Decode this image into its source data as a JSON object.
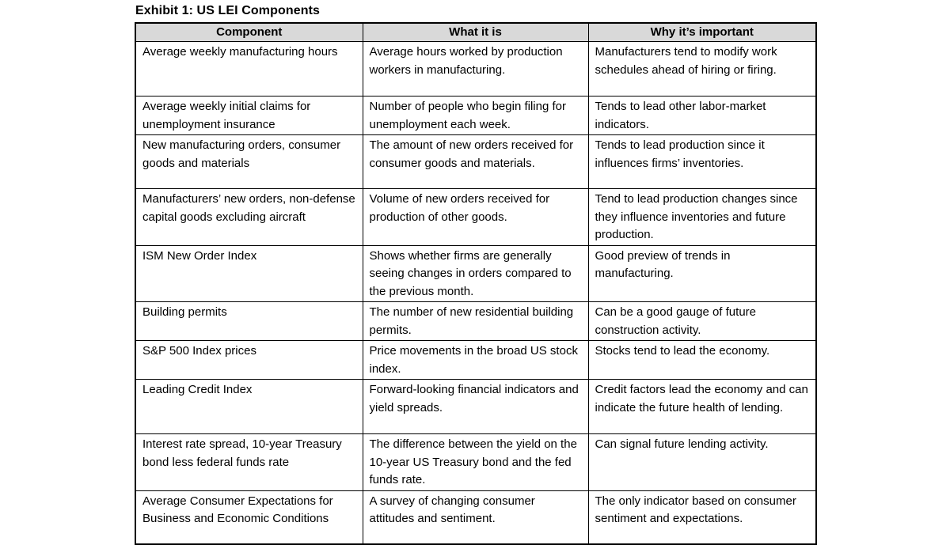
{
  "title": "Exhibit 1: US LEI Components",
  "table": {
    "headers": [
      "Component",
      "What it is",
      "Why it’s important"
    ],
    "rows": [
      {
        "component": "Average weekly manufacturing hours",
        "what": "Average hours worked by production workers in manufacturing.",
        "why": "Manufacturers tend to modify work schedules ahead of hiring or firing."
      },
      {
        "component": "Average weekly initial claims for unemployment insurance",
        "what": "Number of people who begin filing for unemployment each week.",
        "why": "Tends to lead other labor-market indicators."
      },
      {
        "component": "New manufacturing orders, consumer goods and materials",
        "what": "The amount of new orders received for consumer goods and materials.",
        "why": "Tends to lead production since it influences firms’ inventories."
      },
      {
        "component": "Manufacturers’ new orders, non-defense capital goods excluding aircraft",
        "what": "Volume of new orders received for production of other goods.",
        "why": "Tend to lead production changes since they influence inventories and future production."
      },
      {
        "component": "ISM New Order Index",
        "what": "Shows whether firms are generally seeing changes in orders compared to the previous month.",
        "why": "Good preview of trends in manufacturing."
      },
      {
        "component": "Building permits",
        "what": "The number of new residential building permits.",
        "why": "Can be a good gauge of future construction activity."
      },
      {
        "component": "S&P 500 Index prices",
        "what": "Price movements in the broad US stock index.",
        "why": "Stocks tend to lead the economy."
      },
      {
        "component": "Leading Credit Index",
        "what": "Forward-looking financial indicators and yield spreads.",
        "why": "Credit factors lead the economy and can indicate the future health of lending."
      },
      {
        "component": "Interest rate spread, 10-year Treasury bond less federal funds rate",
        "what": "The difference between the yield on the 10-year US Treasury bond and the fed funds rate.",
        "why": "Can signal future lending activity."
      },
      {
        "component": "Average Consumer Expectations for Business and Economic Conditions",
        "what": "A survey of changing consumer attitudes and sentiment.",
        "why": "The only indicator based on consumer sentiment and expectations."
      }
    ]
  },
  "colors": {
    "header_background": "#d9d9d9",
    "border": "#000000",
    "text": "#000000"
  }
}
